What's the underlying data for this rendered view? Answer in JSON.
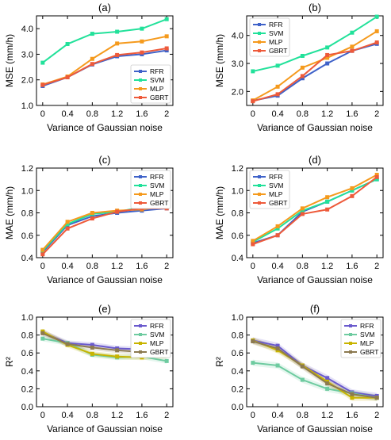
{
  "figure": {
    "x_ticks": [
      "0",
      "0.4",
      "0.8",
      "1.2",
      "1.6",
      "2"
    ]
  },
  "colors": {
    "RFR": "#3f62c9",
    "SVM": "#22e19a",
    "MLP": "#f59a1d",
    "GBRT": "#ee5a3a",
    "RFR_e": "#6a5acd",
    "SVM_e": "#6ecba0",
    "MLP_e": "#c8b400",
    "GBRT_e": "#8c7a50"
  },
  "chart_data": [
    {
      "type": "line",
      "panel_label": "(a)",
      "xlabel": "Variance of Gaussian noise",
      "ylabel": "MSE (mm/h)",
      "x": [
        0,
        0.4,
        0.8,
        1.2,
        1.6,
        2
      ],
      "ylim": [
        1.0,
        4.5
      ],
      "yticks": [
        "1.0",
        "2.0",
        "3.0",
        "4.0"
      ],
      "ytick_values": [
        1.0,
        2.0,
        3.0,
        4.0
      ],
      "legend": "bottom-right",
      "series": [
        {
          "name": "RFR",
          "values": [
            1.76,
            2.1,
            2.6,
            2.92,
            3.0,
            3.15
          ]
        },
        {
          "name": "SVM",
          "values": [
            2.67,
            3.4,
            3.8,
            3.88,
            4.0,
            4.37
          ]
        },
        {
          "name": "MLP",
          "values": [
            1.82,
            2.13,
            2.82,
            3.42,
            3.5,
            3.7
          ]
        },
        {
          "name": "GBRT",
          "values": [
            1.8,
            2.1,
            2.62,
            2.97,
            3.07,
            3.23
          ]
        }
      ]
    },
    {
      "type": "line",
      "panel_label": "(b)",
      "xlabel": "Variance of Gaussian noise",
      "ylabel": "MSE (mm/h)",
      "x": [
        0,
        0.4,
        0.8,
        1.2,
        1.6,
        2
      ],
      "ylim": [
        1.5,
        4.7
      ],
      "yticks": [
        "2.0",
        "3.0",
        "4.0"
      ],
      "ytick_values": [
        2.0,
        3.0,
        4.0
      ],
      "legend": "top-left",
      "series": [
        {
          "name": "RFR",
          "values": [
            1.67,
            1.85,
            2.47,
            3.0,
            3.45,
            3.7
          ]
        },
        {
          "name": "SVM",
          "values": [
            2.72,
            2.92,
            3.27,
            3.57,
            4.1,
            4.67
          ]
        },
        {
          "name": "MLP",
          "values": [
            1.68,
            2.17,
            2.85,
            3.2,
            3.6,
            4.15
          ]
        },
        {
          "name": "GBRT",
          "values": [
            1.65,
            1.9,
            2.55,
            3.3,
            3.45,
            3.75
          ]
        }
      ]
    },
    {
      "type": "line",
      "panel_label": "(c)",
      "xlabel": "Variance of Gaussian noise",
      "ylabel": "MAE (mm/h)",
      "x": [
        0,
        0.4,
        0.8,
        1.2,
        1.6,
        2
      ],
      "ylim": [
        0.4,
        1.2
      ],
      "yticks": [
        "0.4",
        "0.6",
        "0.8",
        "1.0",
        "1.2"
      ],
      "ytick_values": [
        0.4,
        0.6,
        0.8,
        1.0,
        1.2
      ],
      "legend": "top-right",
      "series": [
        {
          "name": "RFR",
          "values": [
            0.45,
            0.69,
            0.77,
            0.8,
            0.82,
            0.84
          ]
        },
        {
          "name": "SVM",
          "values": [
            0.46,
            0.7,
            0.79,
            0.81,
            0.85,
            0.88
          ]
        },
        {
          "name": "MLP",
          "values": [
            0.47,
            0.72,
            0.8,
            0.82,
            0.83,
            0.86
          ]
        },
        {
          "name": "GBRT",
          "values": [
            0.43,
            0.66,
            0.75,
            0.81,
            0.84,
            0.84
          ]
        }
      ]
    },
    {
      "type": "line",
      "panel_label": "(d)",
      "xlabel": "Variance of Gaussian noise",
      "ylabel": "MAE (mm/h)",
      "x": [
        0,
        0.4,
        0.8,
        1.2,
        1.6,
        2
      ],
      "ylim": [
        0.4,
        1.2
      ],
      "yticks": [
        "0.4",
        "0.6",
        "0.8",
        "1.0",
        "1.2"
      ],
      "ytick_values": [
        0.4,
        0.6,
        0.8,
        1.0,
        1.2
      ],
      "legend": "top-left",
      "series": [
        {
          "name": "RFR",
          "values": [
            0.53,
            0.6,
            0.81,
            0.9,
            1.0,
            1.1
          ]
        },
        {
          "name": "SVM",
          "values": [
            0.54,
            0.66,
            0.82,
            0.9,
            1.0,
            1.1
          ]
        },
        {
          "name": "MLP",
          "values": [
            0.55,
            0.68,
            0.84,
            0.94,
            1.02,
            1.14
          ]
        },
        {
          "name": "GBRT",
          "values": [
            0.52,
            0.6,
            0.79,
            0.83,
            0.95,
            1.12
          ]
        }
      ]
    },
    {
      "type": "line",
      "panel_label": "(e)",
      "xlabel": "Variance of Gaussian noise",
      "ylabel": "R²",
      "x": [
        0,
        0.4,
        0.8,
        1.2,
        1.6,
        2
      ],
      "ylim": [
        0.0,
        1.0
      ],
      "yticks": [
        "0.0",
        "0.2",
        "0.4",
        "0.6",
        "0.8",
        "1.0"
      ],
      "ytick_values": [
        0.0,
        0.2,
        0.4,
        0.6,
        0.8,
        1.0
      ],
      "legend": "top-right",
      "series": [
        {
          "name": "RFR",
          "values": [
            0.83,
            0.71,
            0.69,
            0.65,
            0.64,
            0.63
          ]
        },
        {
          "name": "SVM",
          "values": [
            0.76,
            0.71,
            0.58,
            0.55,
            0.56,
            0.51
          ]
        },
        {
          "name": "MLP",
          "values": [
            0.84,
            0.69,
            0.59,
            0.56,
            0.55,
            0.57
          ]
        },
        {
          "name": "GBRT",
          "values": [
            0.82,
            0.7,
            0.66,
            0.63,
            0.61,
            0.59
          ]
        }
      ]
    },
    {
      "type": "line",
      "panel_label": "(f)",
      "xlabel": "Variance of Gaussian noise",
      "ylabel": "R²",
      "x": [
        0,
        0.4,
        0.8,
        1.2,
        1.6,
        2
      ],
      "ylim": [
        0.0,
        1.0
      ],
      "yticks": [
        "0.0",
        "0.2",
        "0.4",
        "0.6",
        "0.8",
        "1.0"
      ],
      "ytick_values": [
        0.0,
        0.2,
        0.4,
        0.6,
        0.8,
        1.0
      ],
      "legend": "top-right",
      "series": [
        {
          "name": "RFR",
          "values": [
            0.74,
            0.68,
            0.46,
            0.32,
            0.16,
            0.12
          ]
        },
        {
          "name": "SVM",
          "values": [
            0.49,
            0.46,
            0.3,
            0.2,
            0.15,
            0.1
          ]
        },
        {
          "name": "MLP",
          "values": [
            0.74,
            0.63,
            0.46,
            0.28,
            0.1,
            0.1
          ]
        },
        {
          "name": "GBRT",
          "values": [
            0.73,
            0.65,
            0.45,
            0.26,
            0.14,
            0.1
          ]
        }
      ]
    }
  ]
}
